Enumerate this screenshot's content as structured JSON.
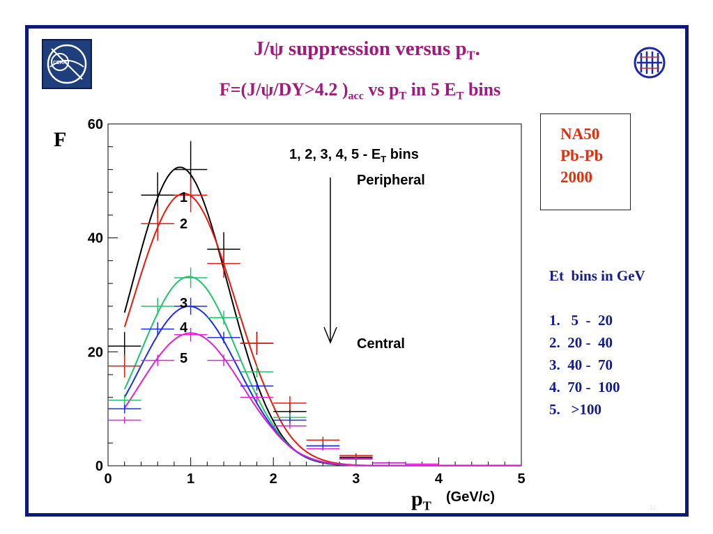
{
  "header": {
    "title_main": "J/ψ suppression   versus p",
    "title_main_sub": "T",
    "title_main_end": ".",
    "subtitle_a": "F=(J/ψ/DY>4.2 )",
    "subtitle_acc": "acc",
    "subtitle_b": "  vs p",
    "subtitle_sub1": "T",
    "subtitle_c": " in 5 E",
    "subtitle_sub2": "T",
    "subtitle_d": " bins"
  },
  "experiment_box": {
    "line1": "NA50",
    "line2": "Pb-Pb",
    "line3": "2000"
  },
  "et_bins": {
    "heading": "Et  bins in GeV",
    "items": [
      "1.   5  -  20",
      "2.  20 -  40",
      "3.  40 -  70",
      "4.  70 -  100",
      "5.   >100"
    ]
  },
  "axes": {
    "ylabel": "F",
    "xlabel": "p",
    "xlabel_sub": "T",
    "xlabel_unit": "(GeV/c)"
  },
  "annotations": {
    "bins_label": "1, 2, 3, 4, 5 - E",
    "bins_label_sub": "T",
    "bins_label_end": " bins",
    "peripheral": "Peripheral",
    "central": "Central"
  },
  "page_number": "11",
  "colors": {
    "frame": "#0d1a7a",
    "title": "#a0197d",
    "na50": "#e03010",
    "etbins": "#141c8c"
  },
  "chart_data": {
    "type": "scatter",
    "xlim": [
      0,
      5
    ],
    "ylim": [
      0,
      60
    ],
    "x_ticks": [
      0,
      1,
      2,
      3,
      4,
      5
    ],
    "y_ticks": [
      0,
      20,
      40,
      60
    ],
    "x_tick_labels": [
      "0",
      "1",
      "2",
      "3",
      "4",
      "5"
    ],
    "y_tick_labels": [
      "0",
      "20",
      "40",
      "60"
    ],
    "grid": false,
    "series": [
      {
        "name": "1",
        "color": "#000000",
        "x": [
          0.2,
          0.6,
          1.0,
          1.4,
          1.8,
          2.2,
          2.6,
          3.0
        ],
        "y": [
          21,
          47.5,
          52,
          38,
          21.5,
          9.5,
          3.5,
          1.5
        ],
        "yerr": [
          2.5,
          4,
          5,
          3,
          2,
          1.5,
          0.8,
          0.5
        ],
        "fit_a": 52.4,
        "fit_mu": 0.87,
        "fit_s": 0.58
      },
      {
        "name": "2",
        "color": "#e8180c",
        "x": [
          0.2,
          0.6,
          1.0,
          1.4,
          1.8,
          2.2,
          2.6,
          3.0
        ],
        "y": [
          17.5,
          42.5,
          47.5,
          35.5,
          21.5,
          11,
          4.5,
          1.8
        ],
        "yerr": [
          2,
          3,
          3,
          2.5,
          1.8,
          1.2,
          0.6,
          0.4
        ],
        "fit_a": 47.8,
        "fit_mu": 0.92,
        "fit_s": 0.62
      },
      {
        "name": "3",
        "color": "#1cc46a",
        "x": [
          0.2,
          0.6,
          1.0,
          1.4,
          1.8,
          2.2,
          2.6,
          3.0,
          3.4
        ],
        "y": [
          11.5,
          28,
          33,
          26,
          16.5,
          8.5,
          3.5,
          1.2,
          0.5
        ],
        "yerr": [
          1,
          1.5,
          1.8,
          1.2,
          1,
          0.7,
          0.5,
          0.3,
          0.2
        ],
        "fit_a": 33.2,
        "fit_mu": 0.98,
        "fit_s": 0.58
      },
      {
        "name": "4",
        "color": "#1a2ee8",
        "x": [
          0.2,
          0.6,
          1.0,
          1.4,
          1.8,
          2.2,
          2.6,
          3.0,
          3.4
        ],
        "y": [
          10,
          24,
          28,
          22.5,
          14,
          8,
          3.5,
          1.2,
          0.5
        ],
        "yerr": [
          0.8,
          1.2,
          1.5,
          1,
          0.8,
          0.6,
          0.4,
          0.3,
          0.2
        ],
        "fit_a": 28.0,
        "fit_mu": 0.98,
        "fit_s": 0.6
      },
      {
        "name": "5",
        "color": "#e020d8",
        "x": [
          0.2,
          0.6,
          1.0,
          1.4,
          1.8,
          2.2,
          2.6,
          3.0,
          3.4,
          3.8
        ],
        "y": [
          8,
          18.5,
          23,
          18.5,
          12,
          7,
          3,
          1.3,
          0.5,
          0.3
        ],
        "yerr": [
          0.6,
          1,
          1.2,
          1,
          0.8,
          0.5,
          0.3,
          0.2,
          0.1,
          0.1
        ],
        "fit_a": 23.3,
        "fit_mu": 1.0,
        "fit_s": 0.62
      }
    ]
  }
}
